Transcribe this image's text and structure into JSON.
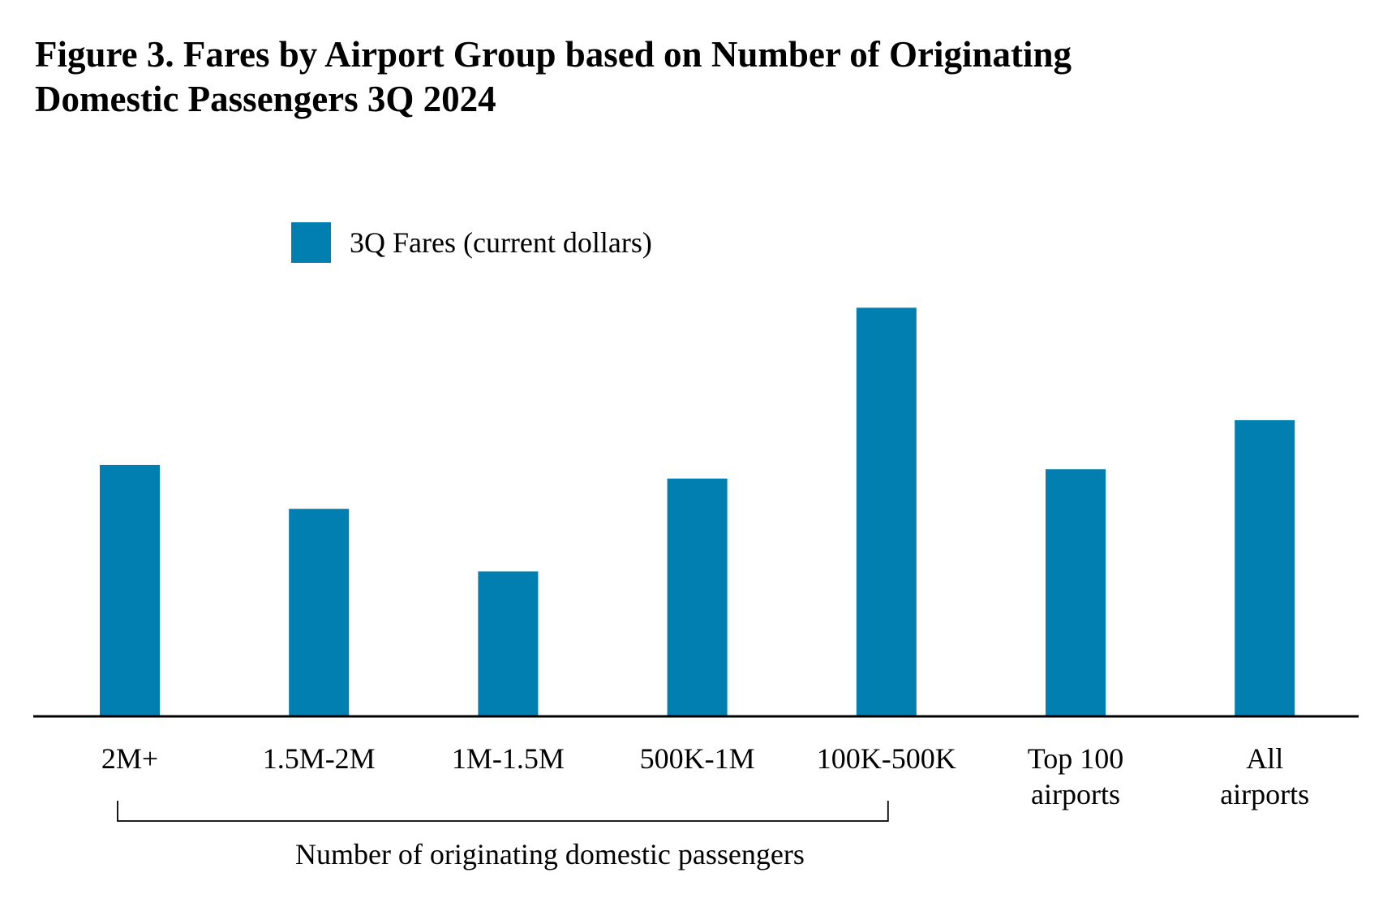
{
  "chart_data": {
    "type": "bar",
    "title": "Figure 3. Fares by Airport Group based on Number of Originating Domestic Passengers 3Q 2024",
    "title_lines": [
      "Figure 3. Fares by Airport Group based on Number of Originating",
      "Domestic Passengers 3Q 2024"
    ],
    "categories": [
      [
        "2M+"
      ],
      [
        "1.5M-2M"
      ],
      [
        "1M-1.5M"
      ],
      [
        "500K-1M"
      ],
      [
        "100K-500K"
      ],
      [
        "Top 100",
        "airports"
      ],
      [
        "All",
        "airports"
      ]
    ],
    "series": [
      {
        "name": "3Q Fares (current dollars)",
        "color": "#007FB0",
        "values": [
          349,
          288,
          201,
          330,
          567,
          343,
          411
        ]
      }
    ],
    "ylim": [
      0,
      600
    ],
    "y_axis_visible": false,
    "grid": false,
    "legend_position": "top-center",
    "group_bracket": {
      "label": "Number of originating domestic passengers",
      "from_category": 0,
      "to_category": 4
    },
    "xlabel": "",
    "ylabel": ""
  }
}
